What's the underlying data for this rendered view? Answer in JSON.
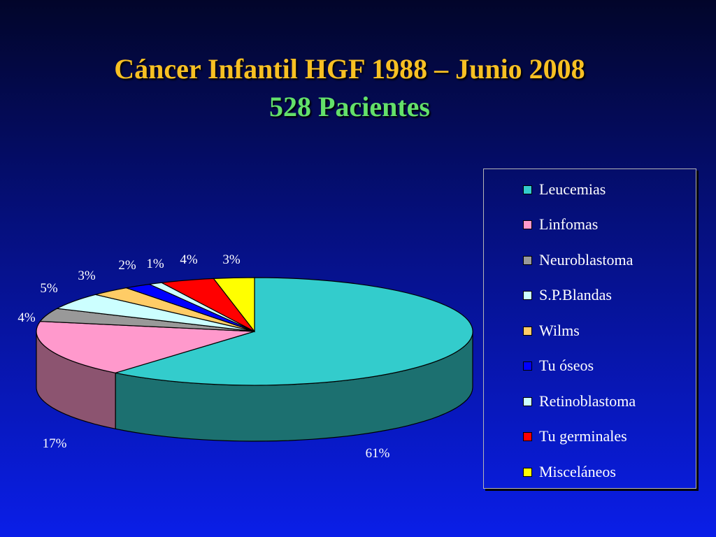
{
  "title": {
    "line1": "Cáncer Infantil HGF 1988 – Junio 2008",
    "line2": "528 Pacientes"
  },
  "chart_data": {
    "type": "pie",
    "style": "3d",
    "categories": [
      "Leucemias",
      "Linfomas",
      "Neuroblastoma",
      "S.P.Blandas",
      "Wilms",
      "Tu óseos",
      "Retinoblastoma",
      "Tu germinales",
      "Misceláneos"
    ],
    "values": [
      61,
      17,
      4,
      5,
      3,
      2,
      1,
      4,
      3
    ],
    "labels": [
      "61%",
      "17%",
      "4%",
      "5%",
      "3%",
      "2%",
      "1%",
      "4%",
      "3%"
    ],
    "colors": [
      "#33cccc",
      "#ff99cc",
      "#999999",
      "#ccffff",
      "#ffcc66",
      "#0000ff",
      "#ccffff",
      "#ff0000",
      "#ffff00"
    ],
    "legend_position": "right"
  },
  "legend": {
    "items": [
      {
        "label": "Leucemias",
        "color": "#33cccc"
      },
      {
        "label": "Linfomas",
        "color": "#ff99cc"
      },
      {
        "label": "Neuroblastoma",
        "color": "#999999"
      },
      {
        "label": "S.P.Blandas",
        "color": "#ccffff"
      },
      {
        "label": "Wilms",
        "color": "#ffcc66"
      },
      {
        "label": "Tu óseos",
        "color": "#0000ff"
      },
      {
        "label": "Retinoblastoma",
        "color": "#ccffff"
      },
      {
        "label": "Tu germinales",
        "color": "#ff0000"
      },
      {
        "label": "Misceláneos",
        "color": "#ffff00"
      }
    ]
  }
}
